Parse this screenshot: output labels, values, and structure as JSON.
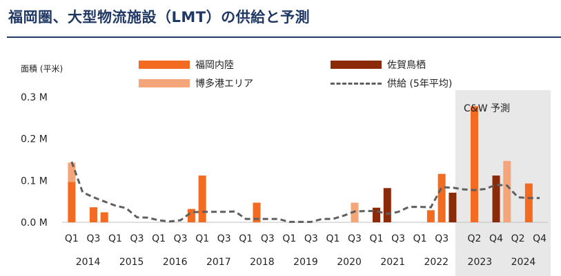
{
  "title": "福岡圏、大型物流施設（LMT）の供給と予測",
  "chart_data": {
    "type": "bar",
    "stacked": true,
    "ylabel": "面積 (平米)",
    "ylim": [
      0,
      0.3
    ],
    "yticks": [
      "0.0 M",
      "0.1 M",
      "0.2 M",
      "0.3 M"
    ],
    "grid": false,
    "legend_position": "top",
    "forecast_label": "C&W 予測",
    "forecast_start_index": 36,
    "legend_items": [
      {
        "key": "fukuoka",
        "label": "福岡内陸",
        "kind": "bar"
      },
      {
        "key": "saga",
        "label": "佐賀鳥栖",
        "kind": "bar"
      },
      {
        "key": "hakata",
        "label": "博多港エリア",
        "kind": "bar"
      },
      {
        "key": "avg",
        "label": "供給 (5年平均)",
        "kind": "line"
      }
    ],
    "tick_labels": [
      {
        "index": 0,
        "text": "Q1"
      },
      {
        "index": 2,
        "text": "Q3"
      },
      {
        "index": 4,
        "text": "Q1"
      },
      {
        "index": 6,
        "text": "Q3"
      },
      {
        "index": 8,
        "text": "Q1"
      },
      {
        "index": 10,
        "text": "Q3"
      },
      {
        "index": 12,
        "text": "Q1"
      },
      {
        "index": 14,
        "text": "Q3"
      },
      {
        "index": 16,
        "text": "Q1"
      },
      {
        "index": 18,
        "text": "Q3"
      },
      {
        "index": 20,
        "text": "Q1"
      },
      {
        "index": 22,
        "text": "Q3"
      },
      {
        "index": 24,
        "text": "Q1"
      },
      {
        "index": 26,
        "text": "Q3"
      },
      {
        "index": 28,
        "text": "Q1"
      },
      {
        "index": 30,
        "text": "Q3"
      },
      {
        "index": 32,
        "text": "Q1"
      },
      {
        "index": 34,
        "text": "Q3"
      },
      {
        "index": 37,
        "text": "Q2"
      },
      {
        "index": 39,
        "text": "Q4"
      },
      {
        "index": 41,
        "text": "Q2"
      },
      {
        "index": 43,
        "text": "Q4"
      }
    ],
    "years": [
      "2014",
      "2015",
      "2016",
      "2017",
      "2018",
      "2019",
      "2020",
      "2021",
      "2022",
      "2023",
      "2024"
    ],
    "x": [
      "2014 Q1",
      "2014 Q2",
      "2014 Q3",
      "2014 Q4",
      "2015 Q1",
      "2015 Q2",
      "2015 Q3",
      "2015 Q4",
      "2016 Q1",
      "2016 Q2",
      "2016 Q3",
      "2016 Q4",
      "2017 Q1",
      "2017 Q2",
      "2017 Q3",
      "2017 Q4",
      "2018 Q1",
      "2018 Q2",
      "2018 Q3",
      "2018 Q4",
      "2019 Q1",
      "2019 Q2",
      "2019 Q3",
      "2019 Q4",
      "2020 Q1",
      "2020 Q2",
      "2020 Q3",
      "2020 Q4",
      "2021 Q1",
      "2021 Q2",
      "2021 Q3",
      "2021 Q4",
      "2022 Q1",
      "2022 Q2",
      "2022 Q3",
      "2022 Q4",
      "2023 Q1",
      "2023 Q2",
      "2023 Q3",
      "2023 Q4",
      "2024 Q1",
      "2024 Q2",
      "2024 Q3",
      "2024 Q4"
    ],
    "series": [
      {
        "key": "fukuoka",
        "name": "福岡内陸",
        "color": "#f26b21",
        "values": [
          0.097,
          0,
          0.036,
          0.024,
          0,
          0,
          0,
          0,
          0,
          0,
          0,
          0.032,
          0.112,
          0,
          0,
          0,
          0,
          0.047,
          0,
          0,
          0,
          0,
          0,
          0,
          0,
          0,
          0,
          0,
          0,
          0,
          0,
          0,
          0,
          0.029,
          0.116,
          0,
          0,
          0.278,
          0,
          0,
          0,
          0,
          0.093,
          0
        ]
      },
      {
        "key": "hakata",
        "name": "博多港エリア",
        "color": "#f5a57a",
        "values": [
          0.046,
          0,
          0,
          0,
          0,
          0,
          0,
          0,
          0,
          0,
          0,
          0,
          0,
          0,
          0,
          0,
          0,
          0,
          0,
          0,
          0,
          0,
          0,
          0,
          0,
          0,
          0.047,
          0,
          0,
          0,
          0,
          0,
          0,
          0,
          0,
          0,
          0,
          0,
          0,
          0,
          0.147,
          0,
          0,
          0
        ]
      },
      {
        "key": "saga",
        "name": "佐賀鳥栖",
        "color": "#8b2a09",
        "values": [
          0,
          0,
          0,
          0,
          0,
          0,
          0,
          0,
          0,
          0,
          0,
          0,
          0,
          0,
          0,
          0,
          0,
          0,
          0,
          0,
          0,
          0,
          0,
          0,
          0,
          0,
          0,
          0,
          0.035,
          0.082,
          0,
          0,
          0,
          0,
          0,
          0.071,
          0,
          0,
          0,
          0.112,
          0,
          0,
          0,
          0
        ]
      },
      {
        "key": "avg",
        "name": "供給 (5年平均)",
        "color": "#5f5f5f",
        "type": "line",
        "values": [
          0.145,
          0.072,
          0.06,
          0.05,
          0.04,
          0.034,
          0.012,
          0.011,
          0.005,
          0.002,
          0.005,
          0.024,
          0.025,
          0.025,
          0.025,
          0.026,
          0.008,
          0.008,
          0.008,
          0.008,
          0.001,
          0.001,
          0.001,
          0.008,
          0.008,
          0.016,
          0.026,
          0.027,
          0.027,
          0.02,
          0.025,
          0.037,
          0.037,
          0.036,
          0.084,
          0.083,
          0.079,
          0.077,
          0.08,
          0.09,
          0.088,
          0.06,
          0.058,
          0.058
        ]
      }
    ]
  }
}
